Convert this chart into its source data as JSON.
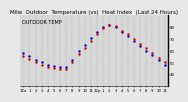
{
  "title": "Milw  Outdoor  Temperature (vs)  Heat Index  (Last 24 Hours)",
  "background_color": "#e8e8e8",
  "plot_background": "#d8d8d8",
  "grid_color": "#aaaaaa",
  "hours": [
    0,
    1,
    2,
    3,
    4,
    5,
    6,
    7,
    8,
    9,
    10,
    11,
    12,
    13,
    14,
    15,
    16,
    17,
    18,
    19,
    20,
    21,
    22,
    23
  ],
  "temp": [
    58,
    55,
    52,
    50,
    48,
    47,
    46,
    46,
    52,
    60,
    65,
    71,
    76,
    80,
    82,
    80,
    76,
    72,
    68,
    64,
    60,
    56,
    52,
    48
  ],
  "heat_index": [
    55,
    53,
    50,
    48,
    46,
    45,
    44,
    44,
    50,
    57,
    62,
    68,
    74,
    79,
    82,
    81,
    77,
    74,
    70,
    66,
    62,
    58,
    54,
    50
  ],
  "ylim_min": 30,
  "ylim_max": 90,
  "temp_color": "#0000cc",
  "heat_color": "#cc0000",
  "markersize": 1.5,
  "linewidth": 0.8,
  "yticks": [
    40,
    50,
    60,
    70,
    80
  ],
  "ytick_labels": [
    "40",
    "50",
    "60",
    "70",
    "80"
  ],
  "xtick_labels": [
    "12a",
    "1",
    "2",
    "3",
    "4",
    "5",
    "6",
    "7",
    "8",
    "9",
    "10",
    "11",
    "12p",
    "1",
    "2",
    "3",
    "4",
    "5",
    "6",
    "7",
    "8",
    "9",
    "10",
    "11"
  ],
  "title_fontsize": 4.0,
  "tick_fontsize": 2.8,
  "legend_text": "OUTDOOR TEMP",
  "legend_fontsize": 3.5
}
